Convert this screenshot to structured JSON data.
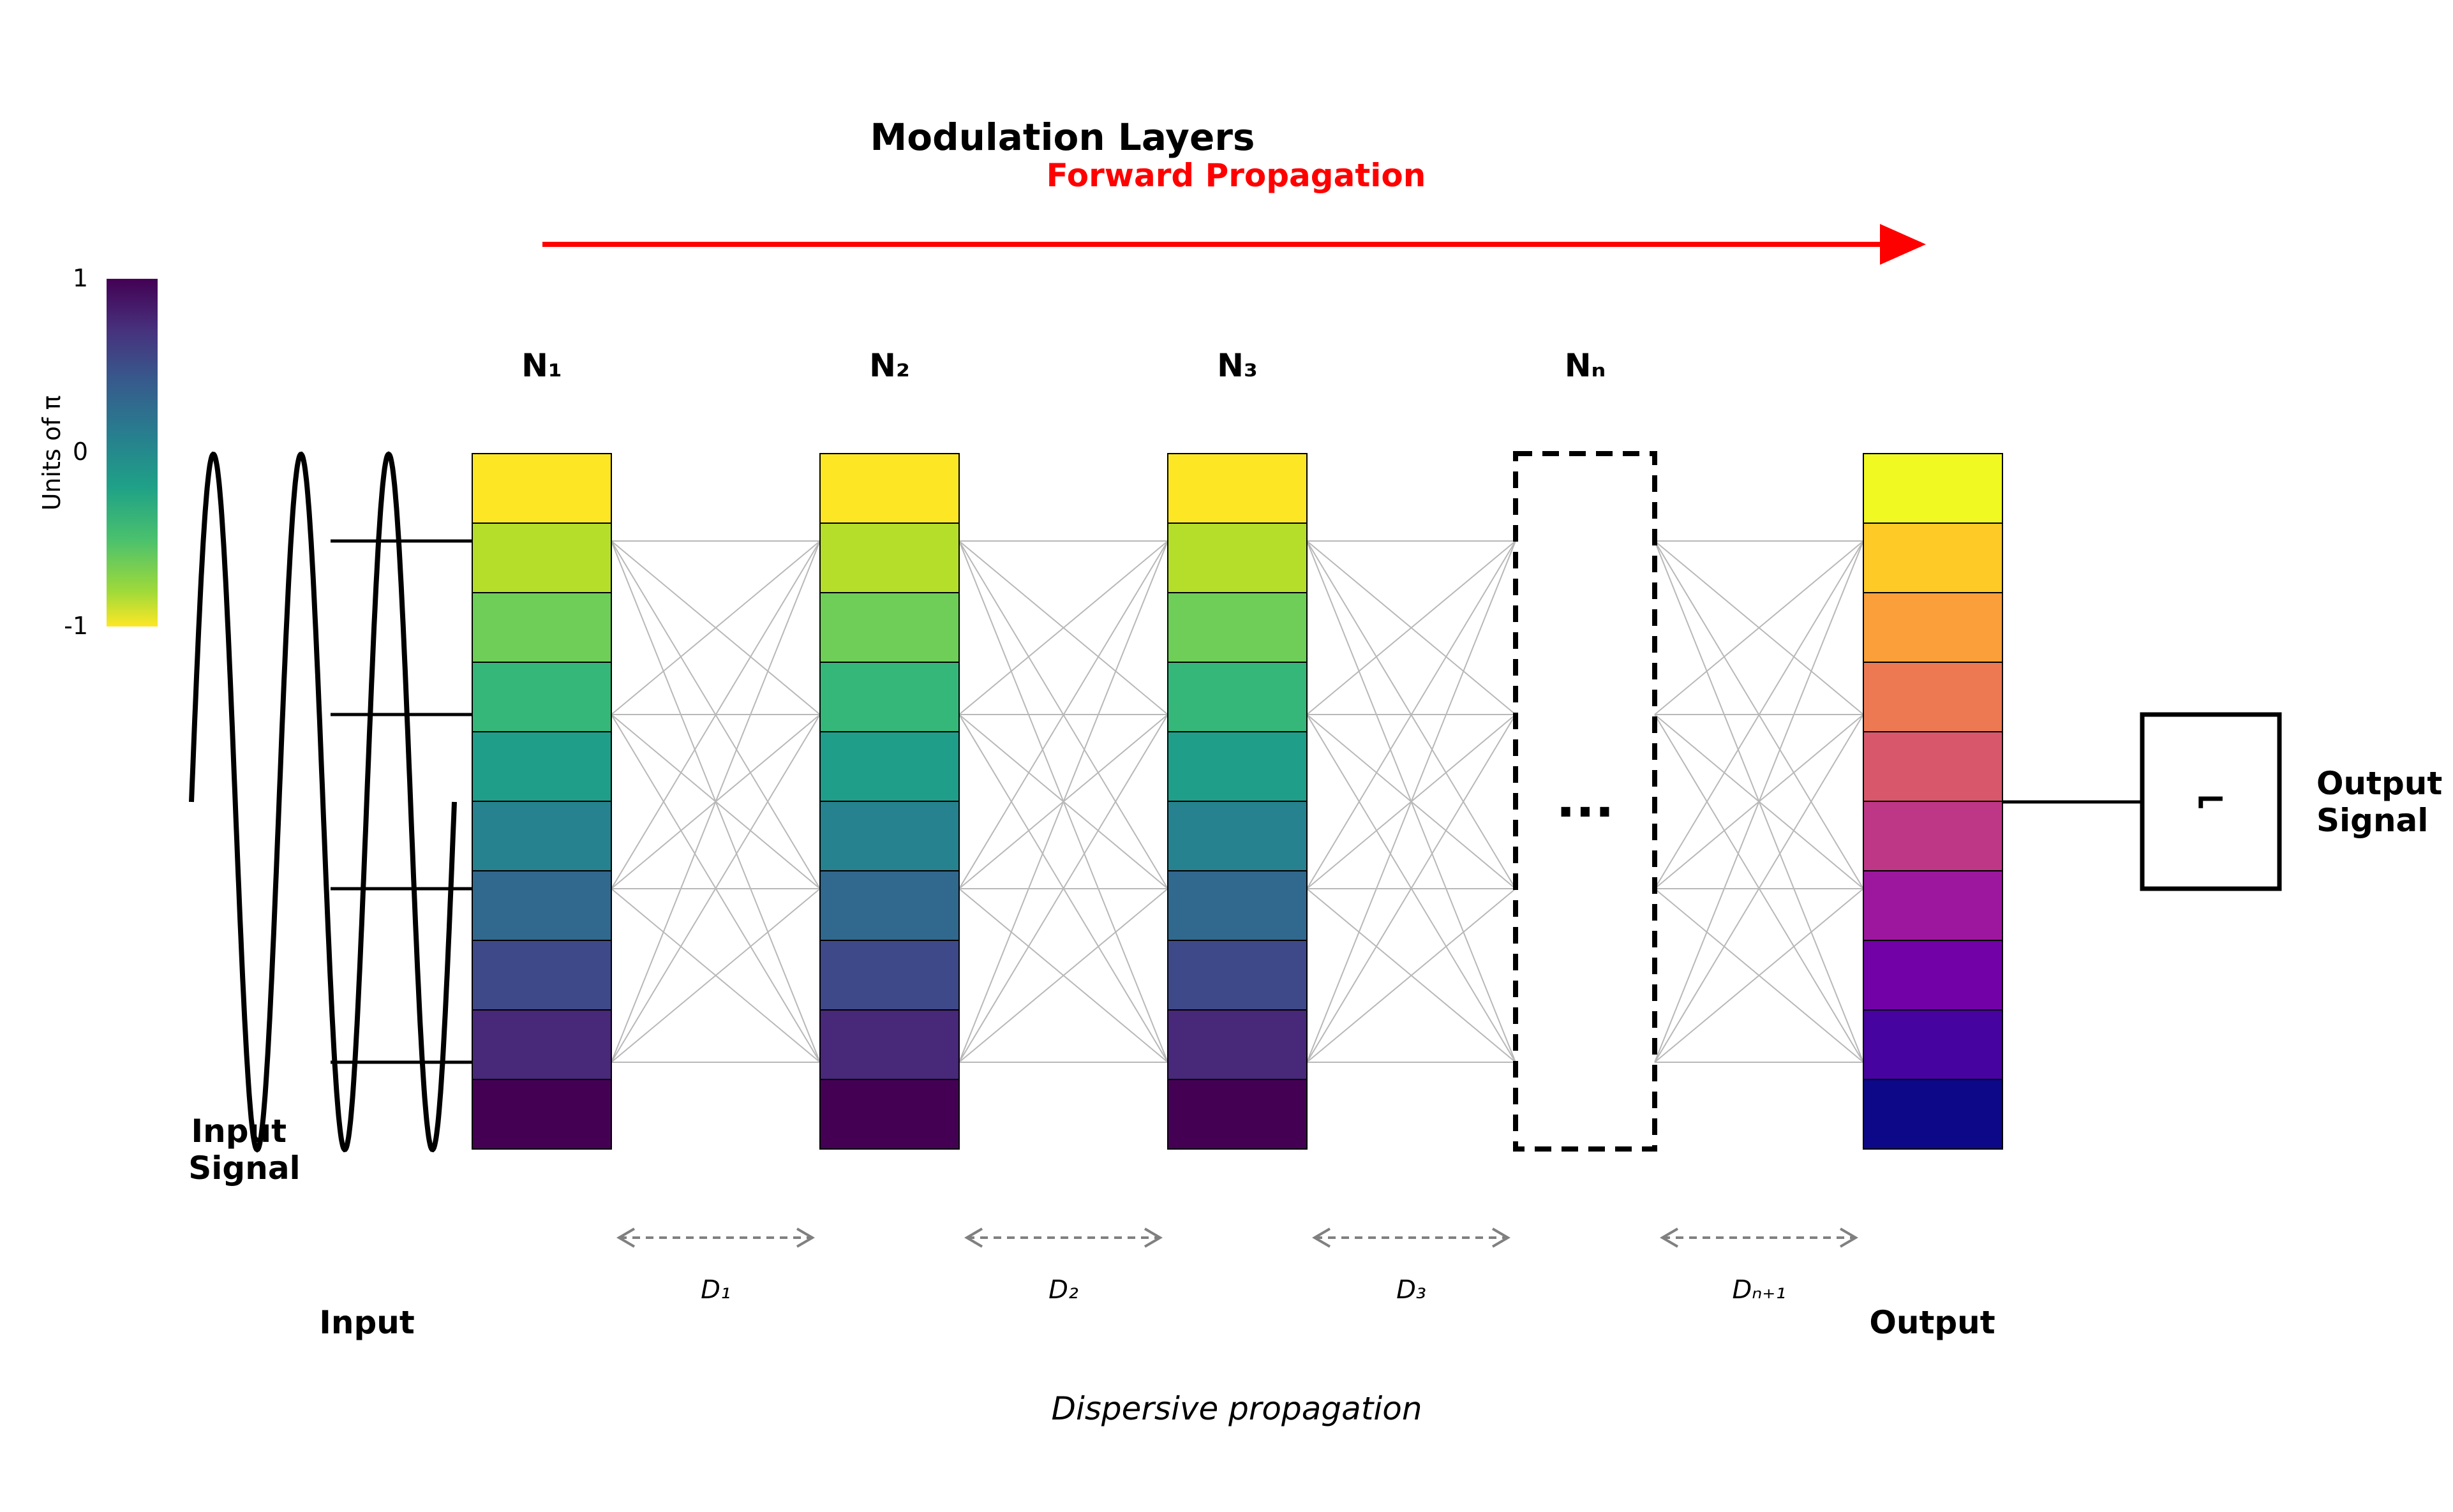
{
  "title": "Modulation Layers",
  "forward_label": "Forward Propagation",
  "colorbar": {
    "label": "Units of π",
    "ticks": [
      "1",
      "0",
      "-1"
    ]
  },
  "layers": [
    {
      "label": "N₁",
      "kind": "cells"
    },
    {
      "label": "N₂",
      "kind": "cells"
    },
    {
      "label": "N₃",
      "kind": "cells"
    },
    {
      "label": "Nₙ",
      "kind": "ellipsis",
      "ellipsis": "..."
    },
    {
      "label": "",
      "kind": "output"
    }
  ],
  "viridis_cells": [
    "#fde725",
    "#b5de2b",
    "#6ece58",
    "#35b779",
    "#1f9e89",
    "#26828e",
    "#31688e",
    "#3e4989",
    "#482878",
    "#440154"
  ],
  "plasma_cells": [
    "#f0f921",
    "#fdca26",
    "#fb9f3a",
    "#ed7953",
    "#d8576b",
    "#bd3786",
    "#9c179e",
    "#7201a8",
    "#46039f",
    "#0d0887"
  ],
  "distances": [
    "D₁",
    "D₂",
    "D₃",
    "Dₙ₊₁"
  ],
  "input_signal_label": [
    "Input",
    "Signal"
  ],
  "input_label": "Input",
  "output_label": "Output",
  "output_signal_label": [
    "Output",
    "Signal"
  ],
  "detector_symbol": "⌐",
  "bottom_label": "Dispersive propagation"
}
